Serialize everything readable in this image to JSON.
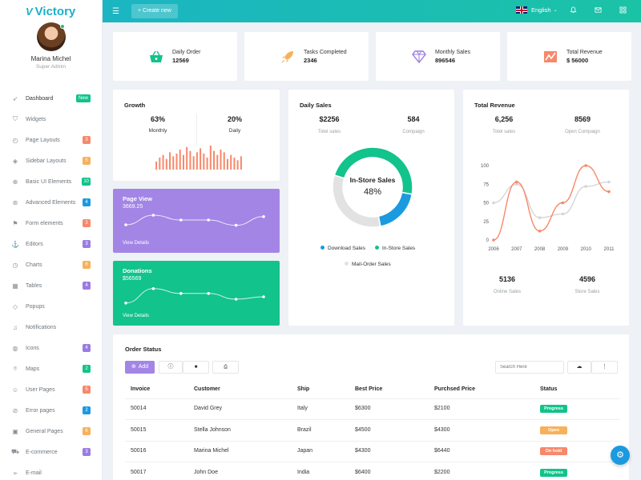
{
  "app": {
    "logo_text": "Victory",
    "brand_color": "#1ab0c9"
  },
  "profile": {
    "name": "Marina Michel",
    "role": "Super Admin"
  },
  "sidebar": {
    "items": [
      {
        "label": "Dashboard",
        "icon": "rocket-icon",
        "badge": "New",
        "badge_color": "#12c38b"
      },
      {
        "label": "Widgets",
        "icon": "shield-icon",
        "badge": "",
        "badge_color": ""
      },
      {
        "label": "Page Layouts",
        "icon": "check-circle-icon",
        "badge": "3",
        "badge_color": "#f7886a"
      },
      {
        "label": "Sidebar Layouts",
        "icon": "layers-icon",
        "badge": "5",
        "badge_color": "#f7b15a"
      },
      {
        "label": "Basic UI Elements",
        "icon": "target-icon",
        "badge": "10",
        "badge_color": "#12c38b"
      },
      {
        "label": "Advanced Elements",
        "icon": "life-buoy-icon",
        "badge": "4",
        "badge_color": "#1b9ae0"
      },
      {
        "label": "Form elements",
        "icon": "flag-icon",
        "badge": "3",
        "badge_color": "#f7886a"
      },
      {
        "label": "Editors",
        "icon": "anchor-icon",
        "badge": "3",
        "badge_color": "#9b7be3"
      },
      {
        "label": "Charts",
        "icon": "clock-icon",
        "badge": "6",
        "badge_color": "#f7b15a"
      },
      {
        "label": "Tables",
        "icon": "grid-icon",
        "badge": "4",
        "badge_color": "#9b7be3"
      },
      {
        "label": "Popups",
        "icon": "diamond-icon",
        "badge": "",
        "badge_color": ""
      },
      {
        "label": "Notifications",
        "icon": "bell-icon",
        "badge": "",
        "badge_color": ""
      },
      {
        "label": "Icons",
        "icon": "globe-icon",
        "badge": "4",
        "badge_color": "#9b7be3"
      },
      {
        "label": "Maps",
        "icon": "map-pin-icon",
        "badge": "2",
        "badge_color": "#12c38b"
      },
      {
        "label": "User Pages",
        "icon": "users-icon",
        "badge": "5",
        "badge_color": "#f7886a"
      },
      {
        "label": "Error pages",
        "icon": "compass-icon",
        "badge": "2",
        "badge_color": "#1b9ae0"
      },
      {
        "label": "General Pages",
        "icon": "briefcase-icon",
        "badge": "6",
        "badge_color": "#f7b15a"
      },
      {
        "label": "E-commerce",
        "icon": "shopping-cart-icon",
        "badge": "3",
        "badge_color": "#9b7be3"
      },
      {
        "label": "E-mail",
        "icon": "send-icon",
        "badge": "",
        "badge_color": ""
      }
    ]
  },
  "topbar": {
    "create_label": "+ Create new",
    "language": "English"
  },
  "stats": [
    {
      "label": "Daily Order",
      "value": "12569",
      "icon": "basket-icon",
      "color": "#12c38b"
    },
    {
      "label": "Tasks Completed",
      "value": "2346",
      "icon": "rocket-icon",
      "color": "#f7b15a"
    },
    {
      "label": "Monthly Sales",
      "value": "896546",
      "icon": "diamond-icon",
      "color": "#9b7be3"
    },
    {
      "label": "Total Revenue",
      "value": "$ 56000",
      "icon": "chart-icon",
      "color": "#f7886a"
    }
  ],
  "growth": {
    "title": "Growth",
    "monthly_value": "63%",
    "monthly_label": "Monthly",
    "daily_value": "20%",
    "daily_label": "Daily"
  },
  "page_view": {
    "title": "Page View",
    "value": "3669.25",
    "link": "View Details",
    "color": "#a385e6"
  },
  "donations": {
    "title": "Donations",
    "value": "$56569",
    "link": "View Details",
    "color": "#12c38b"
  },
  "daily_sales": {
    "title": "Daily Sales",
    "total_value": "$2256",
    "total_label": "Totel sales",
    "compaign_value": "584",
    "compaign_label": "Compaign",
    "center_label": "In-Store Sales",
    "center_value": "48%"
  },
  "total_revenue": {
    "title": "Total Revenue",
    "sales_value": "6,256",
    "sales_label": "Totel sales",
    "compaign_value": "8569",
    "compaign_label": "Open Compaign",
    "online_value": "5136",
    "online_label": "Online Sales",
    "store_value": "4596",
    "store_label": "Store Sales"
  },
  "order_status": {
    "title": "Order Status",
    "add_label": "Add",
    "search_placeholder": "Search Here",
    "columns": [
      "Invoice",
      "Customer",
      "Ship",
      "Best Price",
      "Purchsed Price",
      "Status"
    ],
    "rows": [
      {
        "invoice": "50014",
        "customer": "David Grey",
        "ship": "Italy",
        "best": "$6300",
        "purchased": "$2100",
        "status": "Progress",
        "status_color": "#12c38b"
      },
      {
        "invoice": "50015",
        "customer": "Stella Johnson",
        "ship": "Brazil",
        "best": "$4500",
        "purchased": "$4300",
        "status": "Open",
        "status_color": "#f7b15a"
      },
      {
        "invoice": "50016",
        "customer": "Marina Michel",
        "ship": "Japan",
        "best": "$4300",
        "purchased": "$6440",
        "status": "On hold",
        "status_color": "#f7886a"
      },
      {
        "invoice": "50017",
        "customer": "John Doe",
        "ship": "India",
        "best": "$6400",
        "purchased": "$2200",
        "status": "Progress",
        "status_color": "#12c38b"
      }
    ]
  },
  "chart_data": [
    {
      "type": "bar",
      "title": "Growth",
      "values": [
        12,
        18,
        22,
        16,
        26,
        20,
        24,
        30,
        22,
        34,
        28,
        20,
        26,
        32,
        24,
        18,
        36,
        28,
        22,
        30,
        26,
        16,
        22,
        18,
        14,
        20
      ],
      "color": "#f7886a"
    },
    {
      "type": "line",
      "title": "Page View",
      "values": [
        3.5,
        5.5,
        4.5,
        4.5,
        3.4,
        5.2
      ],
      "color": "#ffffff"
    },
    {
      "type": "line",
      "title": "Donations",
      "values": [
        2.2,
        5.2,
        4.2,
        4.2,
        3.0,
        3.5
      ],
      "color": "#ffffff"
    },
    {
      "type": "pie",
      "title": "Daily Sales",
      "series": [
        {
          "name": "In-Store Sales",
          "value": 48,
          "color": "#12c38b"
        },
        {
          "name": "Download Sales",
          "value": 19,
          "color": "#1b9ae0"
        },
        {
          "name": "Mail-Order Sales",
          "value": 33,
          "color": "#e2e2e2"
        }
      ],
      "legend": [
        "Download Sales",
        "In-Store Sales",
        "Mail-Order Sales"
      ]
    },
    {
      "type": "line",
      "title": "Total Revenue",
      "categories": [
        "2006",
        "2007",
        "2008",
        "2009",
        "2010",
        "2011"
      ],
      "ylim": [
        0,
        100
      ],
      "yticks": [
        "100",
        "75",
        "50",
        "25",
        "0"
      ],
      "series": [
        {
          "x": [
            2006,
            2007,
            2008,
            2009,
            2010,
            2011
          ],
          "values": [
            0,
            78,
            12,
            50,
            100,
            65
          ],
          "color": "#f7886a"
        },
        {
          "x": [
            2006,
            2007,
            2008,
            2009,
            2010,
            2011
          ],
          "values": [
            50,
            75,
            30,
            35,
            72,
            78
          ],
          "color": "#d6d6d6"
        }
      ]
    }
  ]
}
